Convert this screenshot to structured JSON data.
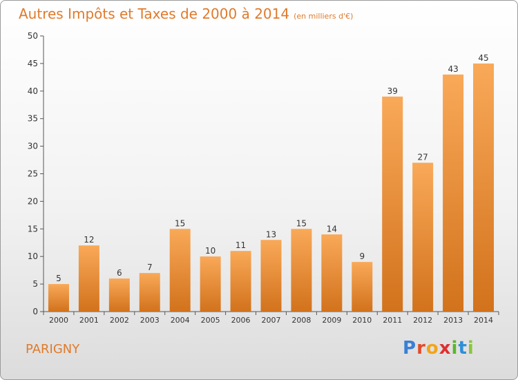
{
  "header": {
    "title": "Autres Impôts et Taxes de 2000 à 2014",
    "unit": "(en milliers d'€)"
  },
  "footer": {
    "city": "PARIGNY",
    "logo": {
      "letters": [
        "P",
        "r",
        "o",
        "x",
        "i",
        "t",
        "i"
      ],
      "colors": [
        "#3a7fd5",
        "#e34b2a",
        "#f2a51a",
        "#e02f2f",
        "#5ab52e",
        "#2f8fd6",
        "#8ac63b"
      ]
    }
  },
  "colors": {
    "accent": "#e07a2a",
    "bar_top": "#f9a958",
    "bar_bottom": "#d2721c"
  },
  "chart_data": {
    "type": "bar",
    "categories": [
      "2000",
      "2001",
      "2002",
      "2003",
      "2004",
      "2005",
      "2006",
      "2007",
      "2008",
      "2009",
      "2010",
      "2011",
      "2012",
      "2013",
      "2014"
    ],
    "values": [
      5,
      12,
      6,
      7,
      15,
      10,
      11,
      13,
      15,
      14,
      9,
      39,
      27,
      43,
      45
    ],
    "yticks": [
      0,
      5,
      10,
      15,
      20,
      25,
      30,
      35,
      40,
      45,
      50
    ],
    "ylim": [
      0,
      50
    ],
    "grid": false,
    "data_labels": true
  }
}
